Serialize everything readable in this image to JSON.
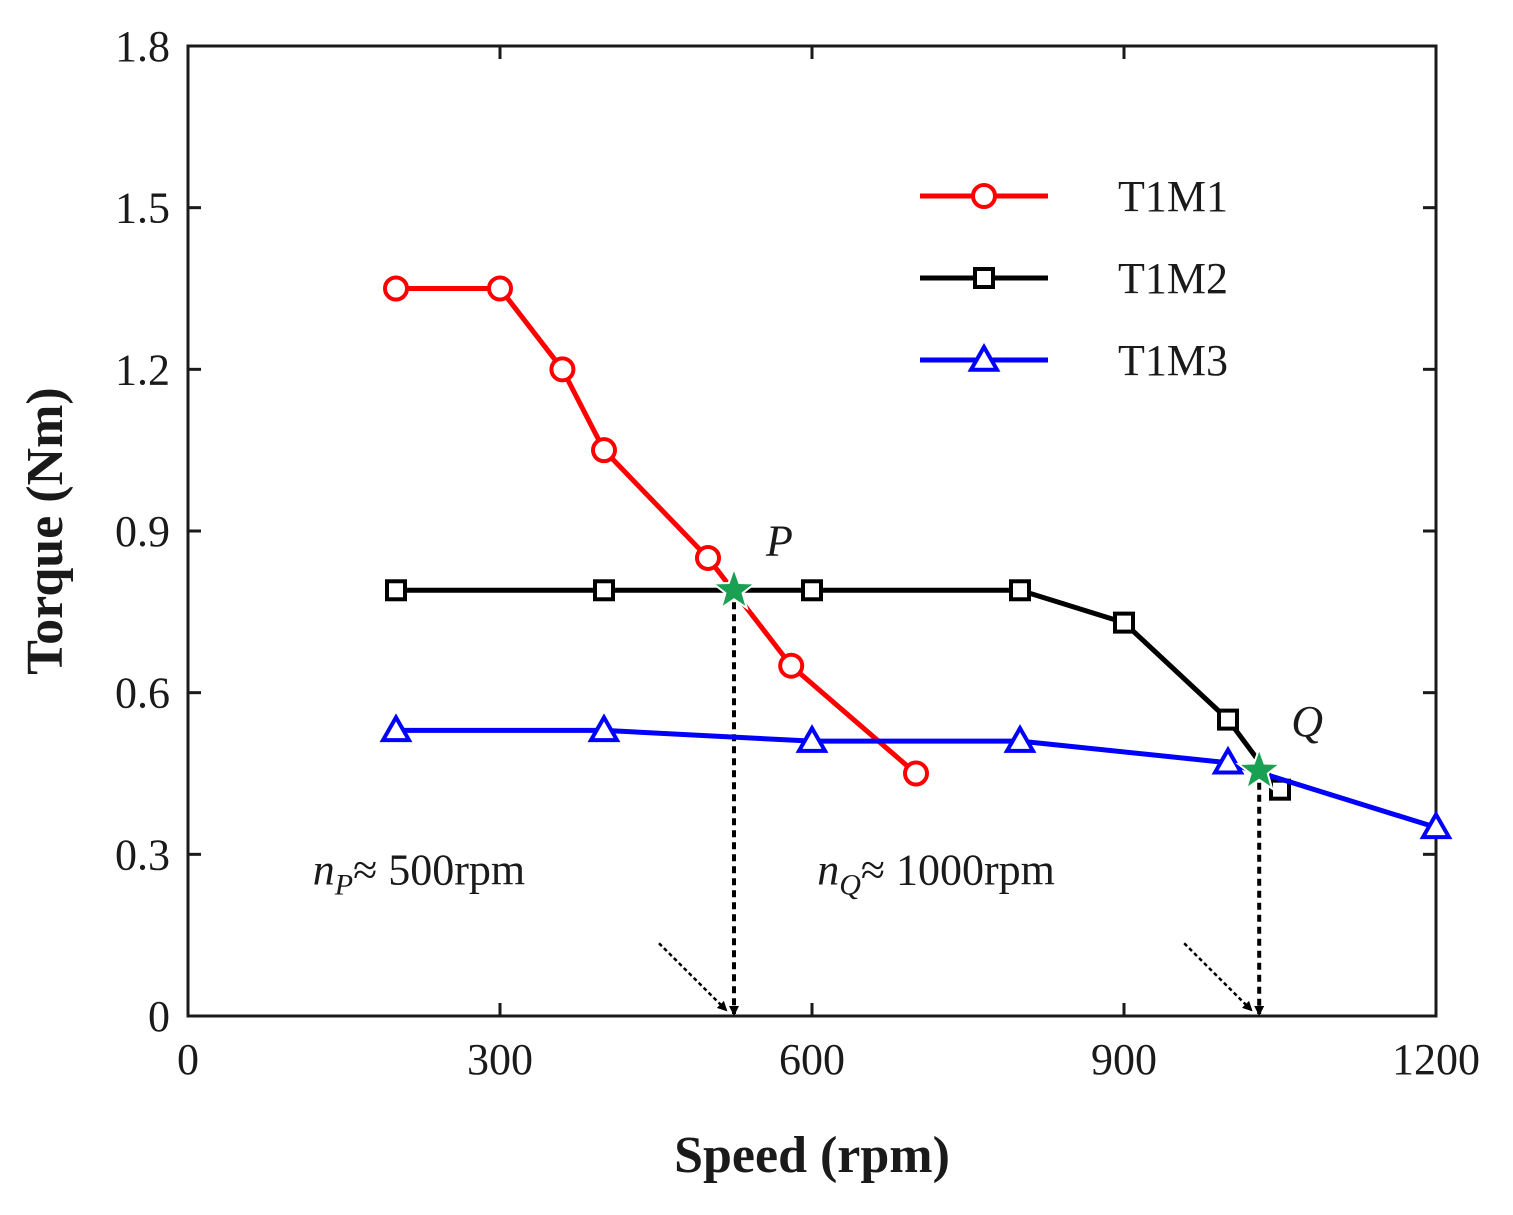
{
  "chart_data": {
    "type": "line",
    "xlabel": "Speed (rpm)",
    "ylabel": "Torque (Nm)",
    "xlim": [
      0,
      1200
    ],
    "ylim": [
      0,
      1.8
    ],
    "xticks": [
      0,
      300,
      600,
      900,
      1200
    ],
    "xtick_labels": [
      "0",
      "300",
      "600",
      "900",
      "1200"
    ],
    "yticks": [
      0,
      0.3,
      0.6,
      0.9,
      1.2,
      1.5,
      1.8
    ],
    "ytick_labels": [
      "0",
      "0.3",
      "0.6",
      "0.9",
      "1.2",
      "1.5",
      "1.8"
    ],
    "grid": false,
    "legend_position": "top-right",
    "series": [
      {
        "name": "T1M1",
        "color": "#ff0000",
        "marker": "circle",
        "x": [
          200,
          300,
          360,
          400,
          500,
          580,
          700
        ],
        "y": [
          1.35,
          1.35,
          1.2,
          1.05,
          0.85,
          0.65,
          0.45
        ]
      },
      {
        "name": "T1M2",
        "color": "#000000",
        "marker": "square",
        "x": [
          200,
          400,
          600,
          800,
          900,
          1000,
          1050
        ],
        "y": [
          0.79,
          0.79,
          0.79,
          0.79,
          0.73,
          0.55,
          0.42
        ]
      },
      {
        "name": "T1M3",
        "color": "#0000ff",
        "marker": "triangle",
        "x": [
          200,
          400,
          600,
          800,
          1000,
          1200
        ],
        "y": [
          0.53,
          0.53,
          0.51,
          0.51,
          0.47,
          0.35
        ]
      }
    ],
    "intersections": [
      {
        "label": "P",
        "x": 525,
        "y": 0.79,
        "color": "#1aa053"
      },
      {
        "label": "Q",
        "x": 1030,
        "y": 0.455,
        "color": "#1aa053"
      }
    ],
    "annotations": [
      {
        "var": "n",
        "sub": "P",
        "text": "≈ 500rpm",
        "x": 120,
        "y": 0.27
      },
      {
        "var": "n",
        "sub": "Q",
        "text": "≈ 1000rpm",
        "x": 605,
        "y": 0.27
      }
    ]
  }
}
